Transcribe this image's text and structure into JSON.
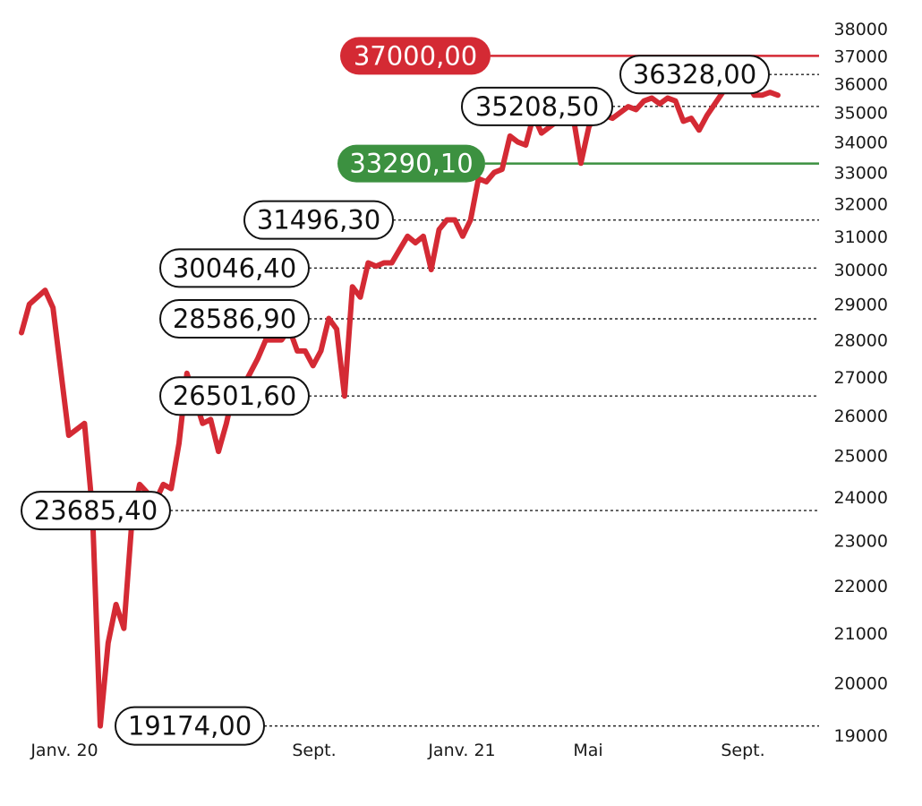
{
  "chart_data": {
    "type": "line",
    "title": "",
    "xlabel": "",
    "ylabel": "",
    "x_ticks": [
      "Janv. 20",
      "Sept.",
      "Janv. 21",
      "Mai",
      "Sept."
    ],
    "y_ticks": [
      "19000",
      "20000",
      "21000",
      "22000",
      "23000",
      "24000",
      "25000",
      "26000",
      "27000",
      "28000",
      "29000",
      "30000",
      "31000",
      "32000",
      "33000",
      "34000",
      "35000",
      "36000",
      "37000",
      "38000"
    ],
    "ylim": [
      19000,
      38000
    ],
    "y_scale": "log",
    "grid": false,
    "line_color": "#d42a34",
    "series": [
      {
        "name": "",
        "x": [
          "2019-12-27",
          "2020-01-03",
          "2020-01-17",
          "2020-01-24",
          "2020-02-07",
          "2020-02-21",
          "2020-02-28",
          "2020-03-06",
          "2020-03-13",
          "2020-03-20",
          "2020-03-27",
          "2020-04-03",
          "2020-04-10",
          "2020-04-24",
          "2020-05-01",
          "2020-05-08",
          "2020-05-15",
          "2020-05-22",
          "2020-06-05",
          "2020-06-12",
          "2020-06-19",
          "2020-06-26",
          "2020-07-03",
          "2020-07-10",
          "2020-07-24",
          "2020-07-31",
          "2020-08-14",
          "2020-08-21",
          "2020-08-28",
          "2020-09-04",
          "2020-09-11",
          "2020-09-18",
          "2020-09-25",
          "2020-10-02",
          "2020-10-09",
          "2020-10-16",
          "2020-10-23",
          "2020-10-30",
          "2020-11-06",
          "2020-11-13",
          "2020-11-20",
          "2020-11-27",
          "2020-12-04",
          "2020-12-11",
          "2020-12-18",
          "2020-12-25",
          "2021-01-01",
          "2021-01-08",
          "2021-01-15",
          "2021-01-22",
          "2021-01-29",
          "2021-02-05",
          "2021-02-12",
          "2021-02-19",
          "2021-02-26",
          "2021-03-05",
          "2021-03-12",
          "2021-03-19",
          "2021-03-26",
          "2021-04-02",
          "2021-04-16",
          "2021-04-30",
          "2021-05-07",
          "2021-05-14",
          "2021-05-21",
          "2021-05-28",
          "2021-06-04",
          "2021-06-18",
          "2021-06-25",
          "2021-07-02",
          "2021-07-09",
          "2021-07-16",
          "2021-07-23",
          "2021-07-30",
          "2021-08-06",
          "2021-08-13",
          "2021-08-20",
          "2021-08-27",
          "2021-09-03",
          "2021-09-10",
          "2021-09-17",
          "2021-09-24",
          "2021-10-01",
          "2021-10-08",
          "2021-10-15",
          "2021-10-22",
          "2021-10-29"
        ],
        "values": [
          28200,
          29000,
          29400,
          28900,
          25500,
          25800,
          23700,
          19174,
          20800,
          21600,
          21100,
          23400,
          24300,
          23900,
          24300,
          24200,
          25300,
          27100,
          25800,
          25900,
          25100,
          25800,
          26700,
          26700,
          27500,
          28000,
          28000,
          28300,
          27700,
          27700,
          27300,
          27700,
          28600,
          28300,
          26500,
          29500,
          29200,
          30200,
          30100,
          30200,
          30200,
          30600,
          31000,
          30800,
          31000,
          30000,
          31200,
          31500,
          31500,
          31000,
          31500,
          32800,
          32700,
          33000,
          33100,
          34200,
          34000,
          33900,
          34900,
          34300,
          34700,
          34900,
          33300,
          34500,
          35000,
          34900,
          34800,
          35200,
          35100,
          35400,
          35500,
          35300,
          35500,
          35400,
          34700,
          34800,
          34400,
          34900,
          35300,
          35700,
          36000,
          36328,
          36100,
          35600,
          35600,
          35700,
          35600
        ],
        "values_note": ""
      }
    ],
    "levels": [
      {
        "value": 37000.0,
        "label": "37000,00",
        "style": "red-solid",
        "color": "#d42a34"
      },
      {
        "value": 36328.0,
        "label": "36328,00",
        "style": "dashed"
      },
      {
        "value": 35208.5,
        "label": "35208,50",
        "style": "dashed"
      },
      {
        "value": 33290.1,
        "label": "33290,10",
        "style": "green-solid",
        "color": "#3c9140"
      },
      {
        "value": 31496.3,
        "label": "31496,30",
        "style": "dashed"
      },
      {
        "value": 30046.4,
        "label": "30046,40",
        "style": "dashed"
      },
      {
        "value": 28586.9,
        "label": "28586,90",
        "style": "dashed"
      },
      {
        "value": 26501.6,
        "label": "26501,60",
        "style": "dashed"
      },
      {
        "value": 23685.4,
        "label": "23685,40",
        "style": "dashed"
      },
      {
        "value": 19174.0,
        "label": "19174,00",
        "style": "dashed"
      }
    ]
  }
}
